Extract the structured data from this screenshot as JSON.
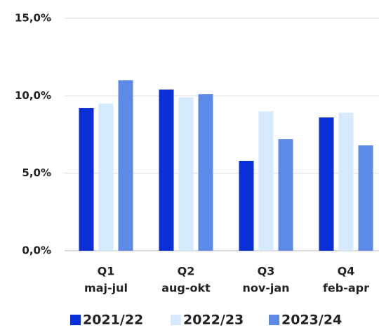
{
  "chart_data": {
    "type": "bar",
    "categories": [
      [
        "Q1",
        "maj-jul"
      ],
      [
        "Q2",
        "aug-okt"
      ],
      [
        "Q3",
        "nov-jan"
      ],
      [
        "Q4",
        "feb-apr"
      ]
    ],
    "series": [
      {
        "name": "2021/22",
        "color": "#0a2fd6",
        "values": [
          9.2,
          10.4,
          5.8,
          8.6
        ]
      },
      {
        "name": "2022/23",
        "color": "#d6eaff",
        "values": [
          9.5,
          9.9,
          9.0,
          8.9
        ]
      },
      {
        "name": "2023/24",
        "color": "#5b8be6",
        "values": [
          11.0,
          10.1,
          7.2,
          6.8
        ]
      }
    ],
    "ylim": [
      0,
      15
    ],
    "yticks": [
      {
        "value": 0,
        "label": "0,0%"
      },
      {
        "value": 5,
        "label": "5,0%"
      },
      {
        "value": 10,
        "label": "10,0%"
      },
      {
        "value": 15,
        "label": "15,0%"
      }
    ],
    "grid": true,
    "legend": "bottom"
  }
}
